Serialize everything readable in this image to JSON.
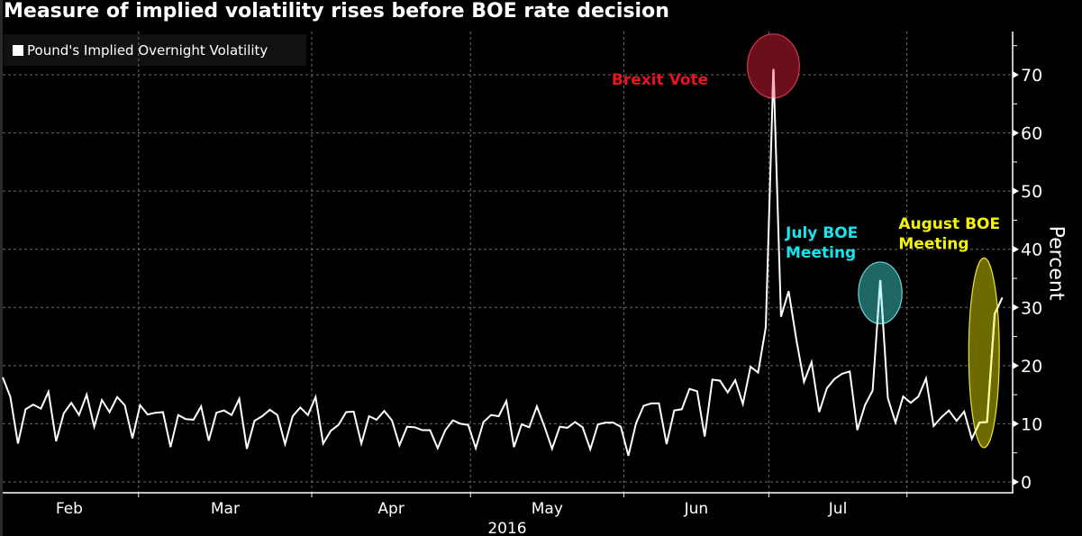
{
  "chart_data": {
    "type": "line",
    "title": "Measure of implied volatility rises before BOE rate decision",
    "legend": {
      "position": "top-left",
      "entries": [
        "Pound's Implied Overnight Volatility"
      ]
    },
    "xlabel": "2016",
    "ylabel": "Percent",
    "ylim": [
      0,
      75
    ],
    "yticks": [
      0,
      10,
      20,
      30,
      40,
      50,
      60,
      70
    ],
    "x_tick_labels": [
      "Feb",
      "Mar",
      "Apr",
      "May",
      "Jun",
      "Jul"
    ],
    "x_month_boundaries_index": [
      17.8,
      40.5,
      61.3,
      81.4,
      100.4,
      118.5
    ],
    "grid": true,
    "series": [
      {
        "name": "Pound's Implied Overnight Volatility",
        "color": "#ffffff",
        "values": [
          18.0,
          14.6,
          6.6,
          12.5,
          13.3,
          12.6,
          15.5,
          7.0,
          11.8,
          13.6,
          11.5,
          15.0,
          9.5,
          14.1,
          12.0,
          14.6,
          13.2,
          7.5,
          13.2,
          11.6,
          11.9,
          12.0,
          6.0,
          11.5,
          10.8,
          10.7,
          13.0,
          7.1,
          11.9,
          12.3,
          11.5,
          14.3,
          5.7,
          10.5,
          11.3,
          12.4,
          11.5,
          6.5,
          11.3,
          12.8,
          11.5,
          14.6,
          6.6,
          8.8,
          9.8,
          12.0,
          12.1,
          6.6,
          11.3,
          10.7,
          12.2,
          10.6,
          6.3,
          9.5,
          9.4,
          8.9,
          8.9,
          5.8,
          8.9,
          10.6,
          10.0,
          9.8,
          5.8,
          10.3,
          11.5,
          11.3,
          13.9,
          6.0,
          9.9,
          9.4,
          13.0,
          9.5,
          5.7,
          9.5,
          9.3,
          10.3,
          9.4,
          5.6,
          9.9,
          10.2,
          10.2,
          9.5,
          4.5,
          10.1,
          13.1,
          13.5,
          13.5,
          6.5,
          12.3,
          12.5,
          16.0,
          15.6,
          7.8,
          17.6,
          17.4,
          15.4,
          17.5,
          13.4,
          19.8,
          18.8,
          26.6,
          71.0,
          28.4,
          32.8,
          24.5,
          17.2,
          20.6,
          12.0,
          16.1,
          17.7,
          18.6,
          19.0,
          8.9,
          13.2,
          15.7,
          34.7,
          14.4,
          10.2,
          14.7,
          13.6,
          14.7,
          17.8,
          9.6,
          11.1,
          12.3,
          10.5,
          12.1,
          7.4,
          10.2,
          10.3,
          28.9,
          31.7
        ]
      }
    ],
    "annotations": [
      {
        "name": "brexit-vote",
        "lines": [
          "Brexit Vote"
        ],
        "color": "#e8141e",
        "fill": "#6b0f1c",
        "stroke": "#d7374f",
        "point_index": 101,
        "y_center": 71.5,
        "y_half": 5.5,
        "x_half_points": 3.4,
        "label_x_index": 79.8,
        "label_y": 68.3,
        "label_align": "start"
      },
      {
        "name": "july-boe-meeting",
        "lines": [
          "July BOE",
          "Meeting"
        ],
        "color": "#18e4ee",
        "fill": "#1f6767",
        "stroke": "#6dd6d4",
        "point_index": 115,
        "y_center": 32.5,
        "y_half": 5.3,
        "x_half_points": 2.85,
        "label_x_index": 102.6,
        "label_y": 42.0,
        "label_align": "start"
      },
      {
        "name": "august-boe-meeting",
        "lines": [
          "August BOE",
          "Meeting"
        ],
        "color": "#f4f40a",
        "fill": "#6d6a00",
        "stroke": "#e9e62a",
        "point_index": 128.6,
        "y_center": 22.2,
        "y_half": 16.3,
        "x_half_points": 2.0,
        "label_x_index": 117.4,
        "label_y": 43.5,
        "label_align": "start"
      }
    ]
  }
}
